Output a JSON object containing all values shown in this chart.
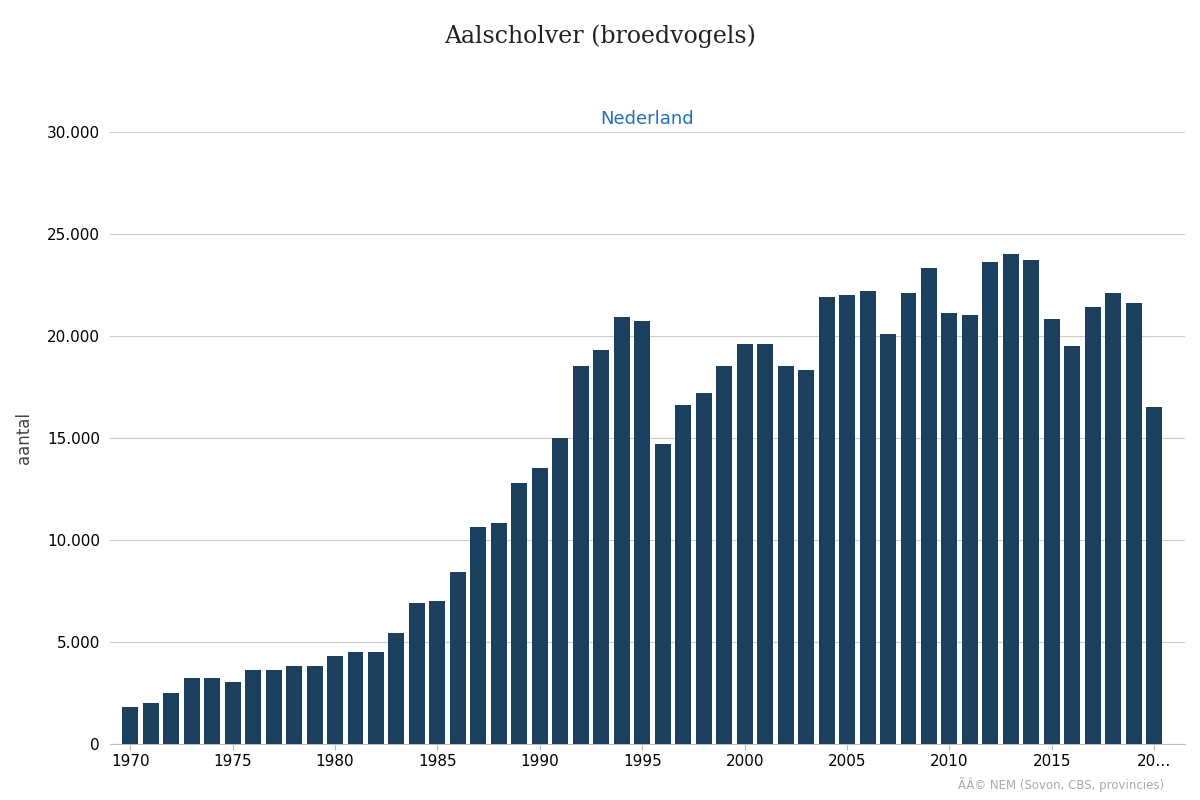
{
  "title": "Aalscholver (broedvogels)",
  "subtitle": "Nederland",
  "ylabel": "aantal",
  "bar_color": "#1c3f5e",
  "background_color": "#ffffff",
  "grid_color": "#cccccc",
  "subtitle_color": "#2272b5",
  "years": [
    1970,
    1971,
    1972,
    1973,
    1974,
    1975,
    1976,
    1977,
    1978,
    1979,
    1980,
    1981,
    1982,
    1983,
    1984,
    1985,
    1986,
    1987,
    1988,
    1989,
    1990,
    1991,
    1992,
    1993,
    1994,
    1995,
    1996,
    1997,
    1998,
    1999,
    2000,
    2001,
    2002,
    2003,
    2004,
    2005,
    2006,
    2007,
    2008,
    2009,
    2010,
    2011,
    2012,
    2013,
    2014,
    2015,
    2016,
    2017,
    2018,
    2019,
    2020
  ],
  "values": [
    1800,
    2000,
    2500,
    3200,
    3200,
    3000,
    3600,
    3600,
    3800,
    3800,
    4300,
    4500,
    4500,
    5400,
    6900,
    7000,
    8400,
    10600,
    10800,
    12800,
    13500,
    15000,
    18500,
    19300,
    20900,
    20700,
    14700,
    16600,
    17200,
    18500,
    19600,
    19600,
    18500,
    18300,
    21900,
    22000,
    22200,
    20100,
    22100,
    23300,
    21100,
    21000,
    23600,
    24000,
    23700,
    20800,
    19500,
    21400,
    22100,
    21600,
    16500
  ],
  "ylim": [
    0,
    30000
  ],
  "yticks": [
    0,
    5000,
    10000,
    15000,
    20000,
    25000,
    30000
  ],
  "xtick_labels": [
    "1970",
    "1975",
    "1980",
    "1985",
    "1990",
    "1995",
    "2000",
    "2005",
    "2010",
    "2015",
    "20…"
  ],
  "xtick_positions": [
    1970,
    1975,
    1980,
    1985,
    1990,
    1995,
    2000,
    2005,
    2010,
    2015,
    2020
  ],
  "source_text": "ÃÂ© NEM (Sovon, CBS, provincies)"
}
